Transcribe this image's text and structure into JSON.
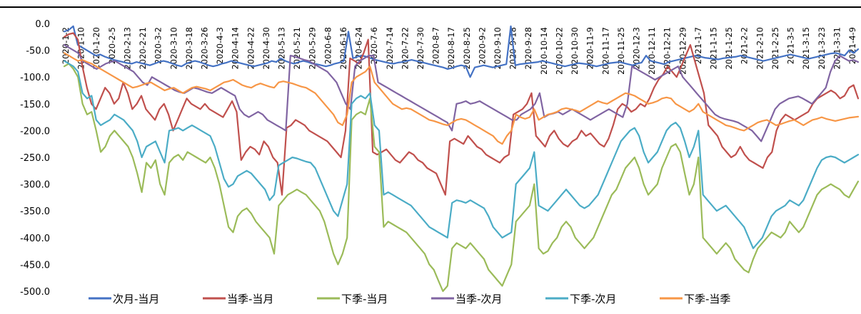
{
  "chart_data": {
    "type": "line",
    "title": "",
    "xlabel": "",
    "ylabel": "",
    "ylim": [
      -500,
      0
    ],
    "yticks": [
      "0.0",
      "-50.0",
      "-100.0",
      "-150.0",
      "-200.0",
      "-250.0",
      "-300.0",
      "-350.0",
      "-400.0",
      "-450.0",
      "-500.0"
    ],
    "x_tick_labels": [
      "2020-1-2",
      "2020-1-10",
      "2020-1-20",
      "2020-2-5",
      "2020-2-13",
      "2020-2-21",
      "2020-3-2",
      "2020-3-10",
      "2020-3-18",
      "2020-3-26",
      "2020-4-3",
      "2020-4-14",
      "2020-4-22",
      "2020-4-30",
      "2020-5-13",
      "2020-5-21",
      "2020-5-29",
      "2020-6-8",
      "2020-6-16",
      "2020-6-24",
      "2020-7-6",
      "2020-7-14",
      "2020-7-22",
      "2020-7-30",
      "2020-8-7",
      "2020-8-17",
      "2020-8-25",
      "2020-9-2",
      "2020-9-10",
      "2020-9-18",
      "2020-9-28",
      "2020-10-14",
      "2020-10-22",
      "2020-10-30",
      "2020-11-9",
      "2020-11-17",
      "2020-11-25",
      "2020-12-3",
      "2020-12-11",
      "2020-12-21",
      "2020-12-29",
      "2021-1-7",
      "2021-1-15",
      "2021-1-25",
      "2021-2-2",
      "2021-2-10",
      "2021-2-25",
      "2021-3-5",
      "2021-3-15",
      "2021-3-23",
      "2021-3-31",
      "2021-4-9"
    ],
    "legend_position": "bottom",
    "grid": false,
    "series": [
      {
        "name": "次月-当月",
        "color": "#4472C4",
        "values": [
          -15,
          -12,
          -5,
          -40,
          -45,
          -50,
          -55,
          -60,
          -58,
          -62,
          -65,
          -68,
          -70,
          -72,
          -74,
          -75,
          -72,
          -74,
          -76,
          -78,
          -75,
          -72,
          -70,
          -72,
          -75,
          -78,
          -80,
          -75,
          -72,
          -70,
          -72,
          -75,
          -78,
          -80,
          -78,
          -75,
          -73,
          -70,
          -72,
          -74,
          -76,
          -78,
          -80,
          -78,
          -76,
          -74,
          -70,
          -72,
          -65,
          -70,
          -73,
          -75,
          -72,
          -70,
          -72,
          -75,
          -76,
          -78,
          -80,
          -78,
          -75,
          -73,
          -70,
          -15,
          -65,
          -62,
          -60,
          -62,
          -65,
          -68,
          -70,
          -72,
          -74,
          -75,
          -73,
          -72,
          -70,
          -68,
          -70,
          -72,
          -74,
          -76,
          -78,
          -80,
          -82,
          -85,
          -83,
          -80,
          -78,
          -80,
          -100,
          -82,
          -80,
          -78,
          -80,
          -82,
          -80,
          -78,
          -76,
          -5,
          -78,
          -76,
          -75,
          -74,
          -73,
          -72,
          -70,
          -72,
          -74,
          -76,
          -78,
          -80,
          -78,
          -76,
          -74,
          -75,
          -76,
          -78,
          -80,
          -78,
          -76,
          -74,
          -73,
          -72,
          -74,
          -76,
          -78,
          -75,
          -73,
          -60,
          -70,
          -72,
          -74,
          -76,
          -72,
          -70,
          -68,
          -66,
          -64,
          -62,
          -60,
          -62,
          -64,
          -65,
          -66,
          -67,
          -65,
          -64,
          -63,
          -62,
          -60,
          -62,
          -64,
          -66,
          -68,
          -70,
          -68,
          -66,
          -64,
          -62,
          -60,
          -58,
          -60,
          -62,
          -64,
          -66,
          -64,
          -62,
          -60,
          -58,
          -56,
          -55,
          -57,
          -60,
          -50,
          -55,
          -48
        ]
      },
      {
        "name": "当季-当月",
        "color": "#C0504D",
        "values": [
          -25,
          -20,
          -18,
          -30,
          -80,
          -120,
          -150,
          -160,
          -140,
          -120,
          -130,
          -150,
          -140,
          -110,
          -130,
          -160,
          -150,
          -135,
          -160,
          -170,
          -180,
          -160,
          -150,
          -170,
          -200,
          -180,
          -160,
          -140,
          -150,
          -155,
          -160,
          -150,
          -160,
          -165,
          -170,
          -175,
          -160,
          -145,
          -165,
          -255,
          -240,
          -230,
          -235,
          -245,
          -220,
          -230,
          -250,
          -260,
          -320,
          -195,
          -190,
          -180,
          -185,
          -190,
          -200,
          -205,
          -210,
          -215,
          -220,
          -230,
          -240,
          -250,
          -200,
          -65,
          -70,
          -75,
          -55,
          -30,
          -240,
          -245,
          -240,
          -235,
          -245,
          -255,
          -260,
          -250,
          -240,
          -245,
          -255,
          -260,
          -270,
          -275,
          -280,
          -300,
          -320,
          -220,
          -215,
          -220,
          -225,
          -210,
          -220,
          -230,
          -235,
          -245,
          -250,
          -255,
          -260,
          -250,
          -245,
          -170,
          -165,
          -160,
          -150,
          -130,
          -210,
          -220,
          -230,
          -210,
          -200,
          -215,
          -225,
          -230,
          -220,
          -215,
          -200,
          -210,
          -205,
          -215,
          -225,
          -230,
          -215,
          -190,
          -160,
          -150,
          -155,
          -165,
          -160,
          -150,
          -155,
          -140,
          -120,
          -105,
          -95,
          -80,
          -90,
          -100,
          -80,
          -60,
          -40,
          -70,
          -100,
          -130,
          -190,
          -200,
          -210,
          -230,
          -240,
          -250,
          -245,
          -230,
          -245,
          -255,
          -260,
          -265,
          -270,
          -250,
          -240,
          -200,
          -180,
          -170,
          -175,
          -180,
          -175,
          -170,
          -165,
          -150,
          -140,
          -135,
          -130,
          -125,
          -130,
          -140,
          -135,
          -120,
          -115,
          -140
        ]
      },
      {
        "name": "下季-当月",
        "color": "#9BBB59",
        "values": [
          -80,
          -75,
          -85,
          -100,
          -150,
          -170,
          -165,
          -200,
          -240,
          -230,
          -210,
          -200,
          -210,
          -220,
          -230,
          -250,
          -280,
          -315,
          -260,
          -270,
          -255,
          -300,
          -320,
          -260,
          -250,
          -245,
          -255,
          -240,
          -245,
          -250,
          -255,
          -260,
          -250,
          -270,
          -300,
          -340,
          -380,
          -390,
          -360,
          -350,
          -345,
          -355,
          -370,
          -380,
          -390,
          -400,
          -430,
          -340,
          -330,
          -320,
          -315,
          -310,
          -315,
          -320,
          -330,
          -340,
          -350,
          -370,
          -400,
          -430,
          -450,
          -430,
          -400,
          -180,
          -170,
          -165,
          -170,
          -140,
          -230,
          -240,
          -380,
          -370,
          -375,
          -380,
          -385,
          -390,
          -400,
          -410,
          -420,
          -430,
          -450,
          -460,
          -480,
          -500,
          -490,
          -420,
          -410,
          -415,
          -420,
          -410,
          -420,
          -430,
          -440,
          -460,
          -470,
          -480,
          -490,
          -470,
          -450,
          -370,
          -360,
          -350,
          -340,
          -300,
          -420,
          -430,
          -425,
          -410,
          -400,
          -380,
          -370,
          -380,
          -400,
          -410,
          -420,
          -410,
          -400,
          -380,
          -360,
          -340,
          -320,
          -310,
          -290,
          -270,
          -260,
          -250,
          -270,
          -300,
          -320,
          -310,
          -300,
          -270,
          -250,
          -230,
          -225,
          -240,
          -280,
          -320,
          -300,
          -250,
          -400,
          -410,
          -420,
          -430,
          -420,
          -410,
          -420,
          -440,
          -450,
          -460,
          -465,
          -440,
          -420,
          -410,
          -400,
          -390,
          -395,
          -400,
          -390,
          -370,
          -380,
          -390,
          -380,
          -360,
          -340,
          -320,
          -310,
          -305,
          -300,
          -305,
          -310,
          -320,
          -325,
          -310,
          -295
        ]
      },
      {
        "name": "当季-次月",
        "color": "#8064A2",
        "values": [
          -40,
          -45,
          -50,
          -55,
          -70,
          -75,
          -80,
          -85,
          -80,
          -75,
          -72,
          -70,
          -75,
          -80,
          -85,
          -90,
          -100,
          -110,
          -115,
          -100,
          -105,
          -110,
          -115,
          -120,
          -125,
          -128,
          -130,
          -125,
          -120,
          -122,
          -125,
          -128,
          -130,
          -125,
          -120,
          -125,
          -130,
          -135,
          -160,
          -170,
          -175,
          -170,
          -165,
          -170,
          -180,
          -185,
          -190,
          -195,
          -200,
          -60,
          -62,
          -65,
          -68,
          -70,
          -75,
          -80,
          -85,
          -90,
          -100,
          -110,
          -130,
          -150,
          -160,
          -80,
          -70,
          -65,
          -60,
          -60,
          -110,
          -115,
          -120,
          -125,
          -130,
          -135,
          -140,
          -145,
          -150,
          -155,
          -160,
          -165,
          -170,
          -175,
          -180,
          -185,
          -200,
          -150,
          -148,
          -145,
          -150,
          -148,
          -145,
          -150,
          -155,
          -160,
          -165,
          -170,
          -175,
          -180,
          -180,
          -170,
          -165,
          -160,
          -150,
          -130,
          -175,
          -170,
          -168,
          -165,
          -170,
          -165,
          -160,
          -165,
          -170,
          -175,
          -180,
          -175,
          -170,
          -165,
          -160,
          -165,
          -170,
          -175,
          -150,
          -80,
          -85,
          -90,
          -95,
          -100,
          -105,
          -100,
          -95,
          -90,
          -85,
          -80,
          -100,
          -110,
          -120,
          -130,
          -140,
          -150,
          -160,
          -170,
          -175,
          -178,
          -180,
          -182,
          -185,
          -190,
          -195,
          -200,
          -210,
          -220,
          -200,
          -180,
          -160,
          -150,
          -145,
          -140,
          -138,
          -136,
          -140,
          -145,
          -150,
          -140,
          -130,
          -120,
          -90,
          -70,
          -60,
          -65,
          -70,
          -68,
          -72
        ]
      },
      {
        "name": "下季-次月",
        "color": "#4BACC6",
        "values": [
          -70,
          -75,
          -80,
          -90,
          -130,
          -140,
          -135,
          -180,
          -190,
          -185,
          -180,
          -170,
          -175,
          -180,
          -190,
          -200,
          -220,
          -250,
          -230,
          -225,
          -220,
          -240,
          -260,
          -200,
          -198,
          -195,
          -200,
          -195,
          -190,
          -195,
          -200,
          -205,
          -210,
          -230,
          -260,
          -290,
          -305,
          -300,
          -285,
          -280,
          -275,
          -280,
          -290,
          -300,
          -310,
          -330,
          -320,
          -265,
          -260,
          -255,
          -250,
          -252,
          -255,
          -258,
          -260,
          -270,
          -290,
          -310,
          -330,
          -350,
          -360,
          -330,
          -300,
          -150,
          -140,
          -135,
          -140,
          -130,
          -190,
          -200,
          -320,
          -315,
          -320,
          -325,
          -330,
          -335,
          -340,
          -350,
          -360,
          -370,
          -380,
          -385,
          -390,
          -395,
          -400,
          -335,
          -330,
          -332,
          -335,
          -330,
          -335,
          -340,
          -345,
          -360,
          -380,
          -390,
          -400,
          -395,
          -390,
          -300,
          -290,
          -280,
          -270,
          -240,
          -340,
          -345,
          -350,
          -340,
          -330,
          -320,
          -310,
          -320,
          -330,
          -340,
          -345,
          -340,
          -330,
          -320,
          -300,
          -280,
          -260,
          -240,
          -220,
          -210,
          -200,
          -195,
          -210,
          -240,
          -260,
          -250,
          -240,
          -220,
          -200,
          -190,
          -185,
          -195,
          -220,
          -250,
          -230,
          -200,
          -320,
          -330,
          -340,
          -350,
          -345,
          -340,
          -350,
          -360,
          -370,
          -380,
          -400,
          -420,
          -410,
          -400,
          -380,
          -360,
          -350,
          -345,
          -340,
          -330,
          -335,
          -340,
          -330,
          -310,
          -290,
          -270,
          -255,
          -250,
          -248,
          -250,
          -255,
          -260,
          -255,
          -250,
          -245
        ]
      },
      {
        "name": "下季-当季",
        "color": "#F79646",
        "values": [
          -55,
          -60,
          -65,
          -70,
          -68,
          -72,
          -75,
          -80,
          -85,
          -90,
          -95,
          -100,
          -105,
          -110,
          -115,
          -120,
          -118,
          -115,
          -112,
          -110,
          -115,
          -120,
          -125,
          -122,
          -120,
          -125,
          -130,
          -125,
          -120,
          -118,
          -120,
          -122,
          -125,
          -120,
          -115,
          -110,
          -108,
          -105,
          -110,
          -115,
          -118,
          -120,
          -115,
          -112,
          -115,
          -118,
          -120,
          -110,
          -108,
          -110,
          -112,
          -115,
          -118,
          -120,
          -125,
          -130,
          -140,
          -150,
          -160,
          -170,
          -185,
          -190,
          -170,
          -110,
          -100,
          -95,
          -90,
          -80,
          -110,
          -120,
          -130,
          -140,
          -150,
          -155,
          -160,
          -158,
          -160,
          -165,
          -170,
          -175,
          -180,
          -182,
          -185,
          -188,
          -190,
          -185,
          -180,
          -178,
          -180,
          -185,
          -190,
          -195,
          -200,
          -205,
          -210,
          -220,
          -225,
          -210,
          -200,
          -170,
          -175,
          -178,
          -175,
          -160,
          -180,
          -175,
          -170,
          -168,
          -165,
          -160,
          -158,
          -160,
          -162,
          -165,
          -160,
          -155,
          -150,
          -145,
          -148,
          -150,
          -145,
          -140,
          -135,
          -130,
          -132,
          -135,
          -140,
          -145,
          -150,
          -148,
          -145,
          -140,
          -138,
          -140,
          -150,
          -155,
          -160,
          -165,
          -160,
          -150,
          -165,
          -170,
          -175,
          -180,
          -185,
          -190,
          -192,
          -195,
          -198,
          -200,
          -195,
          -190,
          -185,
          -182,
          -180,
          -185,
          -190,
          -188,
          -185,
          -182,
          -180,
          -185,
          -190,
          -185,
          -180,
          -178,
          -175,
          -178,
          -180,
          -182,
          -180,
          -178,
          -176,
          -175,
          -174
        ]
      }
    ]
  }
}
